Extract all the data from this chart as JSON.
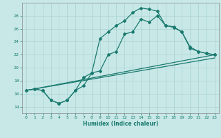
{
  "xlabel": "Humidex (Indice chaleur)",
  "bg_color": "#c8e8e8",
  "line_color": "#1a7a6e",
  "grid_color": "#a8d0d0",
  "xlim": [
    -0.5,
    23.5
  ],
  "ylim": [
    13.0,
    30.0
  ],
  "yticks": [
    14,
    16,
    18,
    20,
    22,
    24,
    26,
    28
  ],
  "xticks": [
    0,
    1,
    2,
    3,
    4,
    5,
    6,
    7,
    8,
    9,
    10,
    11,
    12,
    13,
    14,
    15,
    16,
    17,
    18,
    19,
    20,
    21,
    22,
    23
  ],
  "line1_x": [
    0,
    1,
    2,
    3,
    4,
    5,
    6,
    7,
    8,
    9,
    10,
    11,
    12,
    13,
    14,
    15,
    16,
    17,
    18,
    19,
    20,
    21,
    22,
    23
  ],
  "line1_y": [
    16.5,
    16.7,
    16.5,
    15.0,
    14.5,
    15.0,
    16.5,
    17.2,
    19.2,
    24.5,
    25.5,
    26.5,
    27.2,
    28.5,
    29.2,
    29.0,
    28.7,
    26.5,
    26.3,
    25.5,
    23.2,
    22.5,
    22.2,
    22.0
  ],
  "line2_x": [
    0,
    1,
    2,
    3,
    4,
    5,
    6,
    7,
    8,
    9,
    10,
    11,
    12,
    13,
    14,
    15,
    16,
    17,
    18,
    19,
    20,
    21,
    22,
    23
  ],
  "line2_y": [
    16.5,
    16.7,
    16.5,
    15.0,
    14.5,
    15.0,
    16.5,
    18.5,
    19.2,
    19.5,
    22.0,
    22.5,
    25.2,
    25.5,
    27.5,
    27.0,
    28.0,
    26.5,
    26.2,
    25.5,
    23.0,
    22.5,
    22.2,
    22.0
  ],
  "line3_x": [
    0,
    23
  ],
  "line3_y": [
    16.5,
    22.0
  ],
  "line4_x": [
    0,
    23
  ],
  "line4_y": [
    16.5,
    21.5
  ]
}
